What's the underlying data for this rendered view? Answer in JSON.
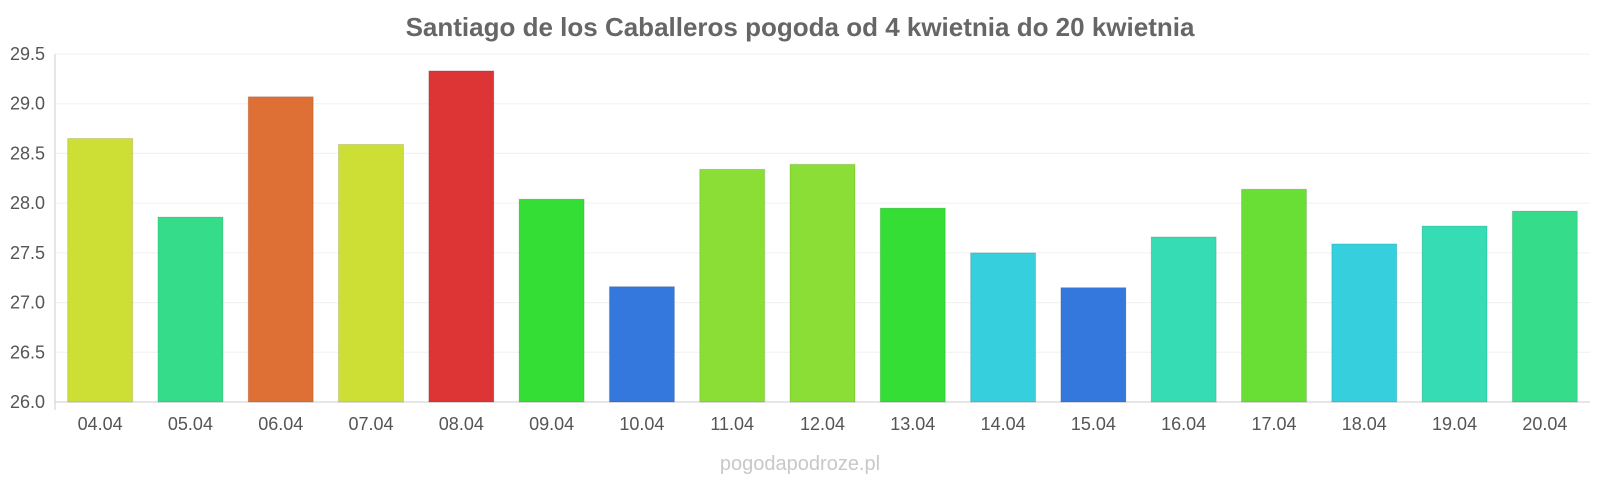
{
  "chart_data": {
    "type": "bar",
    "title": "Santiago de los Caballeros pogoda od 4 kwietnia do 20 kwietnia",
    "xlabel": "",
    "ylabel": "",
    "categories": [
      "04.04",
      "05.04",
      "06.04",
      "07.04",
      "08.04",
      "09.04",
      "10.04",
      "11.04",
      "12.04",
      "13.04",
      "14.04",
      "15.04",
      "16.04",
      "17.04",
      "18.04",
      "19.04",
      "20.04"
    ],
    "values": [
      28.65,
      27.86,
      29.07,
      28.59,
      29.33,
      28.04,
      27.16,
      28.34,
      28.39,
      27.95,
      27.5,
      27.15,
      27.66,
      28.14,
      27.59,
      27.77,
      27.92
    ],
    "colors": [
      "#cddf35",
      "#35dc8a",
      "#de7035",
      "#cddf35",
      "#dd3535",
      "#35de35",
      "#3578dd",
      "#8ade35",
      "#8ade35",
      "#35de35",
      "#35cfdd",
      "#3578dd",
      "#35dcb4",
      "#69de35",
      "#35cfdd",
      "#35dcb4",
      "#35dc8a"
    ],
    "ylim": [
      26.0,
      29.5
    ],
    "yticks": [
      "26.0",
      "26.5",
      "27.0",
      "27.5",
      "28.0",
      "28.5",
      "29.0",
      "29.5"
    ],
    "grid": true,
    "legend": "none"
  },
  "watermark": "pogodapodroze.pl"
}
